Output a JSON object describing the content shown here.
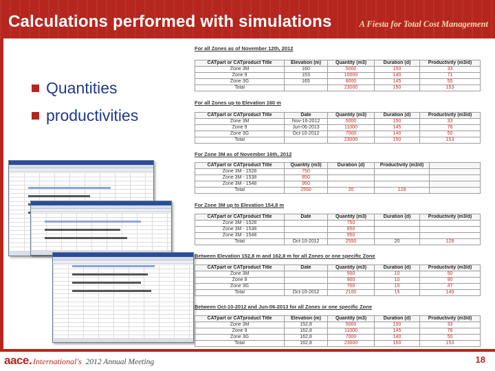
{
  "header": {
    "title": "Calculations performed with simulations",
    "tagline": "A Fiesta for Total Cost Management"
  },
  "bullets": [
    "Quantities",
    "productivities"
  ],
  "sections": [
    {
      "title": "For all Zones as of November 12th, 2012",
      "headers": [
        "CATpart or CATproduct Title",
        "Elevation (m)",
        "Quantity (m3)",
        "Duration (d)",
        "Productivity (m3/d)"
      ],
      "rows": [
        [
          "Zone 3M",
          "160",
          "5000",
          "150",
          "33"
        ],
        [
          "Zone 9",
          "153",
          "10000",
          "140",
          "71"
        ],
        [
          "Zone 3G",
          "165",
          "8000",
          "145",
          "55"
        ],
        [
          "Total",
          "",
          "23000",
          "150",
          "153"
        ]
      ]
    },
    {
      "title": "For all Zones up to Elevation 160 m",
      "headers": [
        "CATpart or CATproduct Title",
        "Date",
        "Quantity (m3)",
        "Duration (d)",
        "Productivity (m3/d)"
      ],
      "rows": [
        [
          "Zone 3M",
          "Nov-16-2012",
          "5000",
          "150",
          "33"
        ],
        [
          "Zone 9",
          "Jun-06-2013",
          "11000",
          "145",
          "76"
        ],
        [
          "Zone 3G",
          "Oct-10-2012",
          "7000",
          "140",
          "50"
        ],
        [
          "Total",
          "",
          "23000",
          "150",
          "153"
        ]
      ]
    },
    {
      "title": "For Zone 3M as of November 16th, 2012",
      "headers": [
        "CATpart or CATproduct Title",
        "Quantity (m3)",
        "Duration (d)",
        "Productivity (m3/d)",
        ""
      ],
      "rows": [
        [
          "Zone 3M - 1528",
          "750",
          "",
          "",
          ""
        ],
        [
          "Zone 3M - 1538",
          "850",
          "",
          "",
          ""
        ],
        [
          "Zone 3M - 1548",
          "950",
          "",
          "",
          ""
        ],
        [
          "Total",
          "2550",
          "20",
          "128",
          ""
        ]
      ]
    },
    {
      "title": "For Zone 3M up to Elevation 154,8 m",
      "headers": [
        "CATpart or CATproduct Title",
        "Date",
        "Quantity (m3)",
        "Duration (d)",
        "Productivity (m3/d)"
      ],
      "rows": [
        [
          "Zone 3M - 1528",
          "",
          "750",
          "",
          ""
        ],
        [
          "Zone 3M - 1538",
          "",
          "850",
          "",
          ""
        ],
        [
          "Zone 3M - 1548",
          "",
          "950",
          "",
          ""
        ],
        [
          "Total",
          "Oct-10-2012",
          "2550",
          "20",
          "128"
        ]
      ]
    },
    {
      "title": "Between Elevation 152,8 m and 162,8 m for all Zones or one specific Zone",
      "headers": [
        "CATpart or CATproduct Title",
        "Date",
        "Quantity (m3)",
        "Duration (d)",
        "Productivity (m3/d)"
      ],
      "rows": [
        [
          "Zone 3M",
          "",
          "500",
          "10",
          "50"
        ],
        [
          "Zone 9",
          "",
          "900",
          "10",
          "90"
        ],
        [
          "Zone 3G",
          "",
          "700",
          "15",
          "47"
        ],
        [
          "Total",
          "Oct-10-2012",
          "2100",
          "15",
          "140"
        ]
      ]
    },
    {
      "title": "Between Oct-10-2012 and Jun-06-2013 for all Zones or one specific Zone",
      "headers": [
        "CATpart or CATproduct Title",
        "Elevation (m)",
        "Quantity (m3)",
        "Duration (d)",
        "Productivity (m3/d)"
      ],
      "rows": [
        [
          "Zone 3M",
          "152,8",
          "5000",
          "150",
          "33"
        ],
        [
          "Zone 9",
          "162,8",
          "11000",
          "145",
          "76"
        ],
        [
          "Zone 3G",
          "162,8",
          "7000",
          "140",
          "50"
        ],
        [
          "Total",
          "162,8",
          "23000",
          "150",
          "153"
        ]
      ]
    }
  ],
  "footer": {
    "logo_aace": "aace.",
    "logo_international": "International's",
    "meeting": "2012 Annual Meeting",
    "page_number": "18"
  },
  "colors": {
    "brand_red": "#b5261e",
    "bullet_blue": "#1e3a8a",
    "value_red": "#d0281c"
  }
}
